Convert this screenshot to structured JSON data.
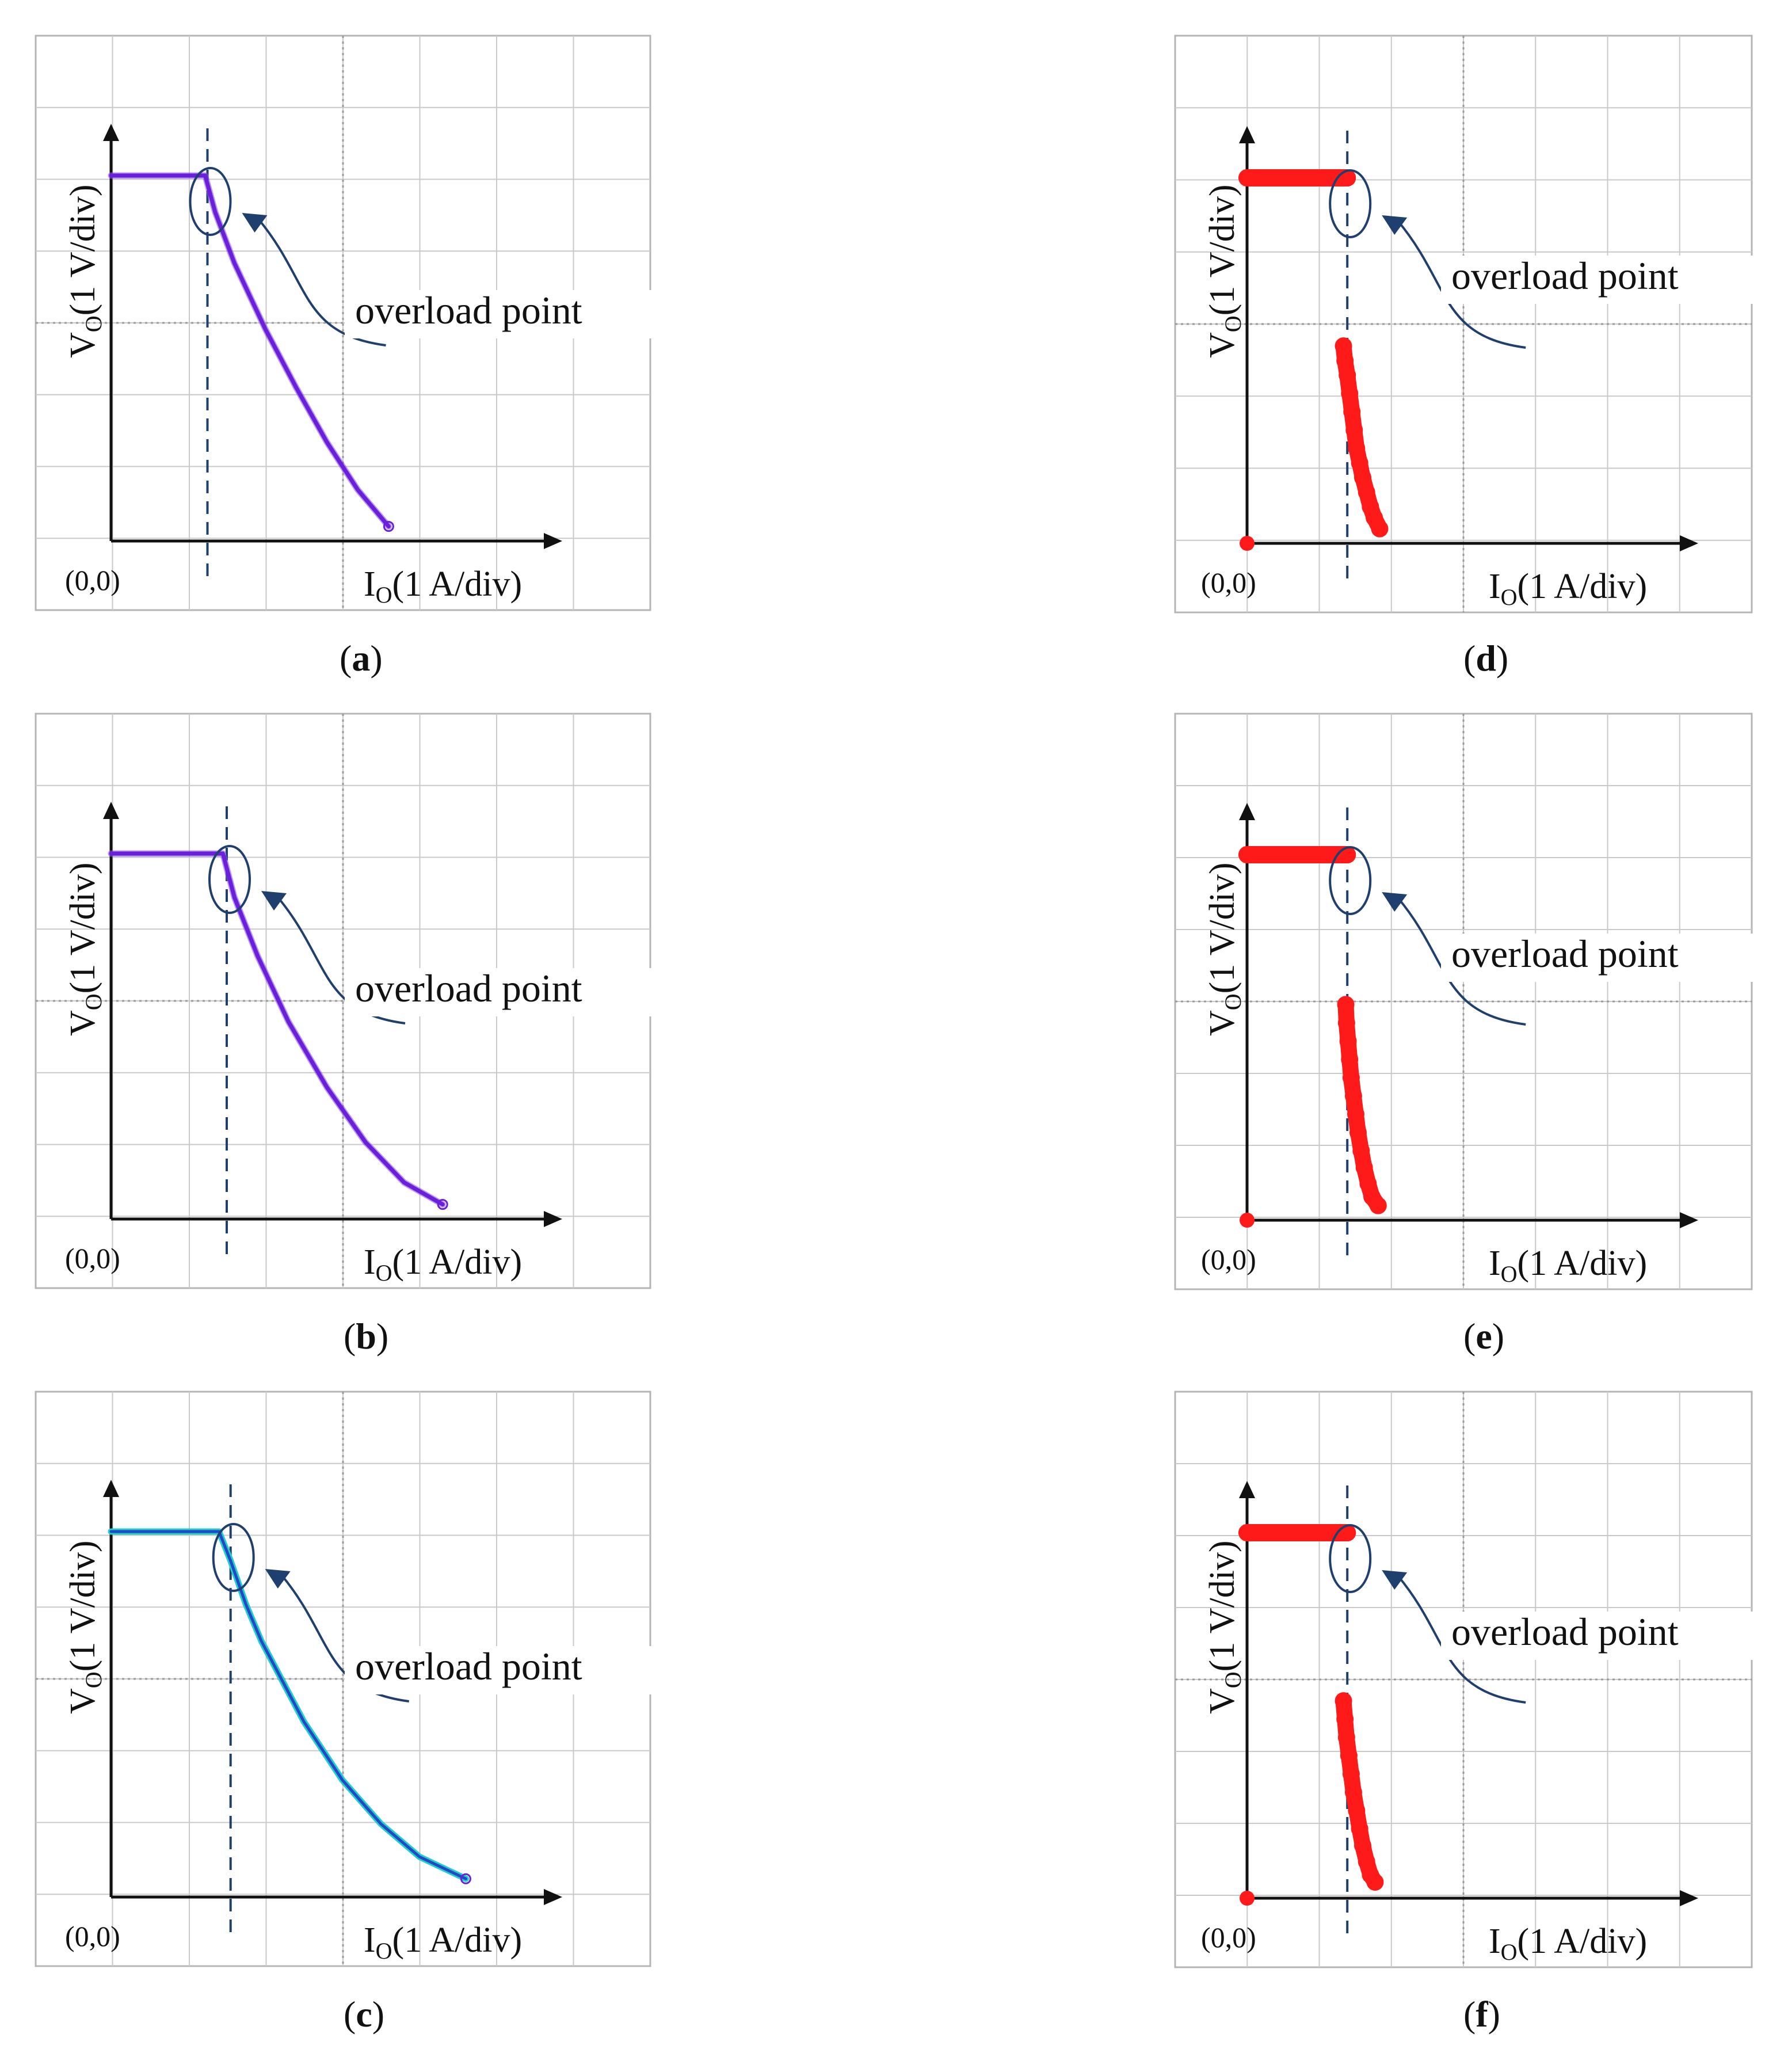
{
  "figure": {
    "labels": {
      "y_axis": "V",
      "y_axis_sub": "O",
      "y_axis_unit": "(1 V/div)",
      "x_axis": "I",
      "x_axis_sub": "O",
      "x_axis_unit": "(1 A/div)",
      "origin": "(0,0)",
      "annotation": "overload point"
    },
    "colors": {
      "grid": "#c9c9c9",
      "frame": "#b5b5b5",
      "axis": "#111111",
      "guide": "#1f3f6e",
      "marker": "#1f3f6e",
      "purple": "#6a1fd9",
      "purple_light": "#8c4cf0",
      "blue_trace": "#2446c8",
      "cyan_trace": "#20d0c8",
      "red": "#ff1a1a"
    }
  },
  "chart_data": [
    {
      "panel": "a",
      "caption_letter": "a",
      "type": "line",
      "title": "",
      "xlabel": "IO(1 A/div)",
      "ylabel": "VO(1 V/div)",
      "xlim": [
        0,
        6
      ],
      "ylim": [
        0,
        5
      ],
      "grid": true,
      "div_per_axis_unit": "1 div",
      "style": "purple-line",
      "overload_point": [
        1.25,
        5
      ],
      "series": [
        {
          "name": "V-I curve",
          "x": [
            0,
            1.22,
            1.35,
            1.6,
            2.0,
            2.4,
            2.8,
            3.2,
            3.6
          ],
          "y": [
            5,
            5,
            4.5,
            3.8,
            2.9,
            2.1,
            1.35,
            0.7,
            0.2
          ]
        }
      ]
    },
    {
      "panel": "b",
      "caption_letter": "b",
      "type": "line",
      "title": "",
      "xlabel": "IO(1 A/div)",
      "ylabel": "VO(1 V/div)",
      "xlim": [
        0,
        6
      ],
      "ylim": [
        0,
        5
      ],
      "grid": true,
      "style": "purple-line",
      "overload_point": [
        1.5,
        5
      ],
      "series": [
        {
          "name": "V-I curve",
          "x": [
            0,
            1.45,
            1.6,
            1.9,
            2.3,
            2.8,
            3.3,
            3.8,
            4.3
          ],
          "y": [
            5,
            5,
            4.4,
            3.6,
            2.7,
            1.8,
            1.05,
            0.5,
            0.2
          ]
        }
      ]
    },
    {
      "panel": "c",
      "caption_letter": "c",
      "type": "line",
      "title": "",
      "xlabel": "IO(1 A/div)",
      "ylabel": "VO(1 V/div)",
      "xlim": [
        0,
        6
      ],
      "ylim": [
        0,
        5
      ],
      "grid": true,
      "style": "cyan-blue-line",
      "overload_point": [
        1.55,
        5
      ],
      "series": [
        {
          "name": "V-I curve",
          "x": [
            0,
            1.4,
            1.55,
            1.75,
            1.95,
            2.0,
            2.2,
            2.5,
            3.0,
            3.5,
            4.0,
            4.6
          ],
          "y": [
            5,
            5,
            4.6,
            4.0,
            3.5,
            3.4,
            3.0,
            2.4,
            1.6,
            1.0,
            0.55,
            0.25
          ]
        }
      ]
    },
    {
      "panel": "d",
      "caption_letter": "d",
      "type": "scatter",
      "title": "",
      "xlabel": "IO(1 A/div)",
      "ylabel": "VO(1 V/div)",
      "xlim": [
        0,
        6
      ],
      "ylim": [
        0,
        5
      ],
      "grid": true,
      "style": "red-dots",
      "overload_point": [
        1.3,
        5
      ],
      "series": [
        {
          "name": "upper plateau",
          "x": [
            0,
            0.15,
            0.3,
            0.45,
            0.6,
            0.75,
            0.9,
            1.05,
            1.2,
            1.3
          ],
          "y": [
            5,
            5,
            5,
            5,
            5,
            5,
            5,
            5,
            5,
            5
          ]
        },
        {
          "name": "lower branch",
          "x": [
            1.25,
            1.27,
            1.3,
            1.33,
            1.36,
            1.39,
            1.42,
            1.46,
            1.5,
            1.55,
            1.6,
            1.65,
            1.72
          ],
          "y": [
            2.7,
            2.5,
            2.3,
            2.05,
            1.8,
            1.55,
            1.3,
            1.1,
            0.9,
            0.7,
            0.5,
            0.35,
            0.2
          ]
        },
        {
          "name": "origin point",
          "x": [
            0
          ],
          "y": [
            0
          ]
        }
      ]
    },
    {
      "panel": "e",
      "caption_letter": "e",
      "type": "scatter",
      "title": "",
      "xlabel": "IO(1 A/div)",
      "ylabel": "VO(1 V/div)",
      "xlim": [
        0,
        6
      ],
      "ylim": [
        0,
        5
      ],
      "grid": true,
      "style": "red-dots",
      "overload_point": [
        1.3,
        5
      ],
      "series": [
        {
          "name": "upper plateau",
          "x": [
            0,
            0.15,
            0.3,
            0.45,
            0.6,
            0.75,
            0.9,
            1.05,
            1.2,
            1.3
          ],
          "y": [
            5,
            5,
            5,
            5,
            5,
            5,
            5,
            5,
            5,
            5
          ]
        },
        {
          "name": "lower branch",
          "x": [
            1.28,
            1.29,
            1.31,
            1.33,
            1.35,
            1.38,
            1.41,
            1.44,
            1.48,
            1.52,
            1.57,
            1.62,
            1.7
          ],
          "y": [
            2.95,
            2.7,
            2.45,
            2.2,
            1.95,
            1.7,
            1.45,
            1.2,
            0.95,
            0.72,
            0.5,
            0.32,
            0.2
          ]
        },
        {
          "name": "origin point",
          "x": [
            0
          ],
          "y": [
            0
          ]
        }
      ]
    },
    {
      "panel": "f",
      "caption_letter": "f",
      "type": "scatter",
      "title": "",
      "xlabel": "IO(1 A/div)",
      "ylabel": "VO(1 V/div)",
      "xlim": [
        0,
        6
      ],
      "ylim": [
        0,
        5
      ],
      "grid": true,
      "style": "red-dots",
      "overload_point": [
        1.3,
        5
      ],
      "series": [
        {
          "name": "upper plateau",
          "x": [
            0,
            0.15,
            0.3,
            0.45,
            0.6,
            0.75,
            0.9,
            1.05,
            1.2,
            1.3
          ],
          "y": [
            5,
            5,
            5,
            5,
            5,
            5,
            5,
            5,
            5,
            5
          ]
        },
        {
          "name": "lower branch",
          "x": [
            1.25,
            1.27,
            1.29,
            1.32,
            1.35,
            1.38,
            1.42,
            1.46,
            1.5,
            1.55,
            1.6,
            1.66
          ],
          "y": [
            2.7,
            2.45,
            2.2,
            1.95,
            1.7,
            1.45,
            1.2,
            0.95,
            0.72,
            0.5,
            0.32,
            0.22
          ]
        },
        {
          "name": "origin point",
          "x": [
            0
          ],
          "y": [
            0
          ]
        }
      ]
    }
  ]
}
